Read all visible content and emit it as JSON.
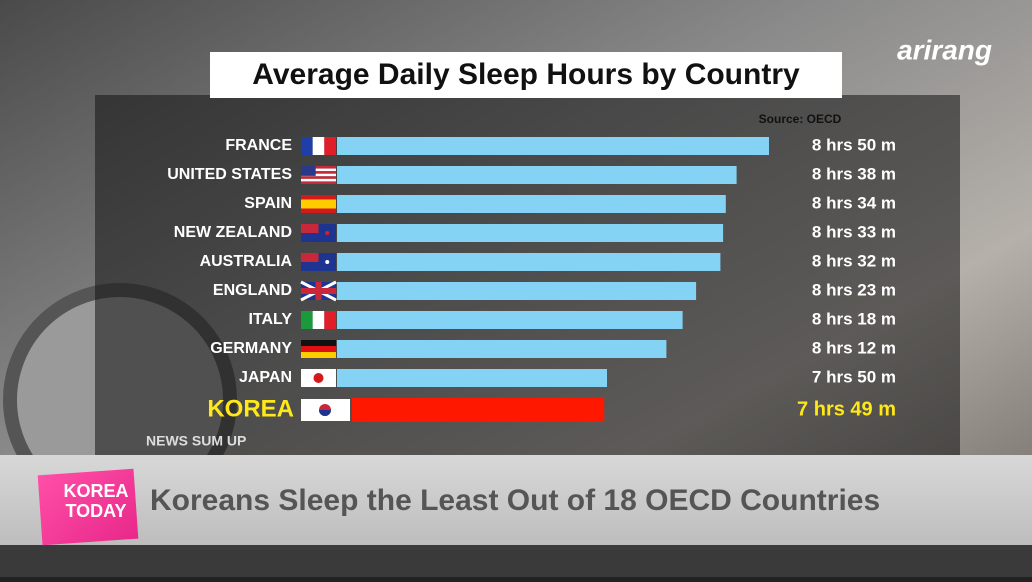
{
  "chart_data": {
    "type": "bar",
    "orientation": "horizontal",
    "title": "Average Daily Sleep Hours by Country",
    "source": "Source: OECD",
    "categories": [
      "FRANCE",
      "UNITED STATES",
      "SPAIN",
      "NEW ZEALAND",
      "AUSTRALIA",
      "ENGLAND",
      "ITALY",
      "GERMANY",
      "JAPAN",
      "KOREA"
    ],
    "values": [
      530,
      518,
      514,
      513,
      512,
      503,
      498,
      492,
      470,
      469
    ],
    "value_labels": [
      "8 hrs 50 m",
      "8 hrs 38 m",
      "8 hrs 34 m",
      "8 hrs 33 m",
      "8 hrs 32 m",
      "8 hrs 23 m",
      "8 hrs 18 m",
      "8 hrs 12 m",
      "7 hrs 50 m",
      "7 hrs 49 m"
    ],
    "colors": [
      "#84d2f4",
      "#84d2f4",
      "#84d2f4",
      "#84d2f4",
      "#84d2f4",
      "#84d2f4",
      "#84d2f4",
      "#84d2f4",
      "#84d2f4",
      "#ff1800"
    ],
    "label_colors": [
      "#ffffff",
      "#ffffff",
      "#ffffff",
      "#ffffff",
      "#ffffff",
      "#ffffff",
      "#ffffff",
      "#ffffff",
      "#ffffff",
      "#ffe81a"
    ],
    "xlim": [
      370,
      540
    ]
  },
  "logo": "arirang",
  "section": "NEWS SUM UP",
  "program": [
    "KOREA",
    "TODAY"
  ],
  "headline": "Koreans Sleep the Least Out of 18 OECD Countries"
}
